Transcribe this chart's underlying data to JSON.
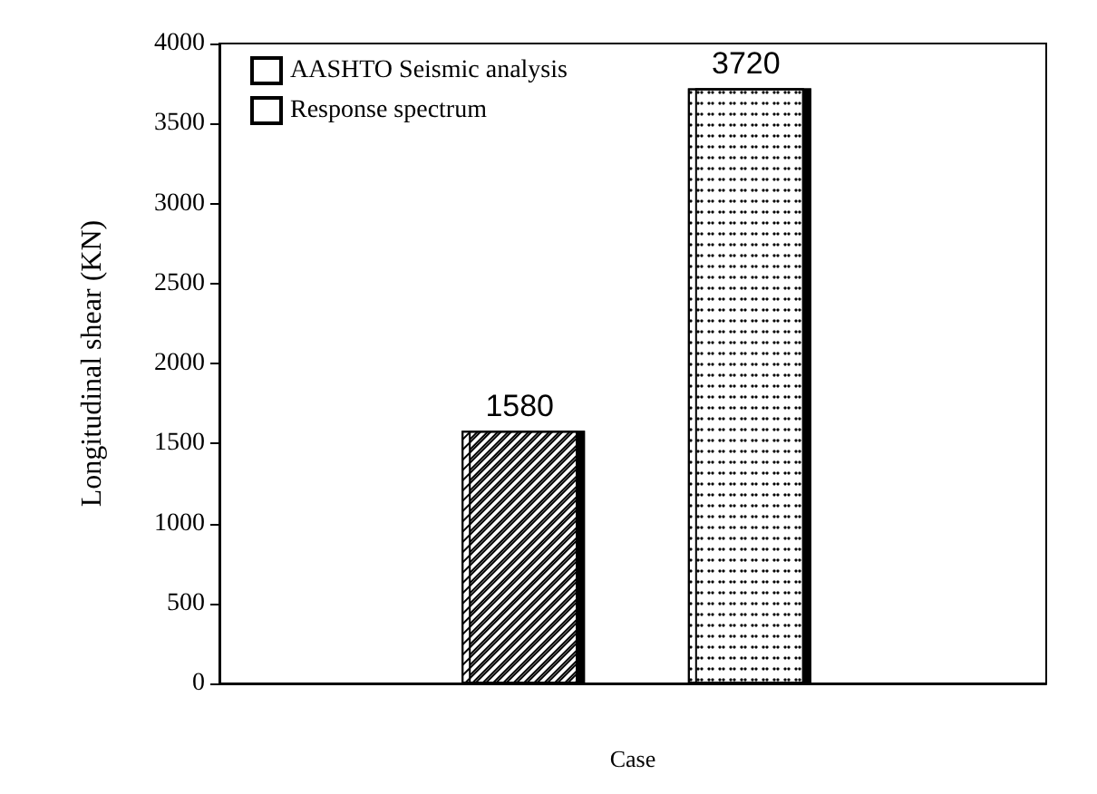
{
  "chart_data": {
    "type": "bar",
    "xlabel": "Case",
    "ylabel": "Longitudinal shear (KN)",
    "categories": [
      null
    ],
    "series": [
      {
        "name": "AASHTO Seismic analysis",
        "color": "#ffffff",
        "values": [
          1580
        ]
      },
      {
        "name": "Response spectrum",
        "color": "#ffffff",
        "values": [
          3720
        ]
      }
    ],
    "ylim": [
      0,
      4000
    ],
    "yticks": [
      0,
      500,
      1000,
      1500,
      2000,
      2500,
      3000,
      3500,
      4000
    ],
    "grid": false,
    "legend": "top left",
    "data_labels": true
  }
}
